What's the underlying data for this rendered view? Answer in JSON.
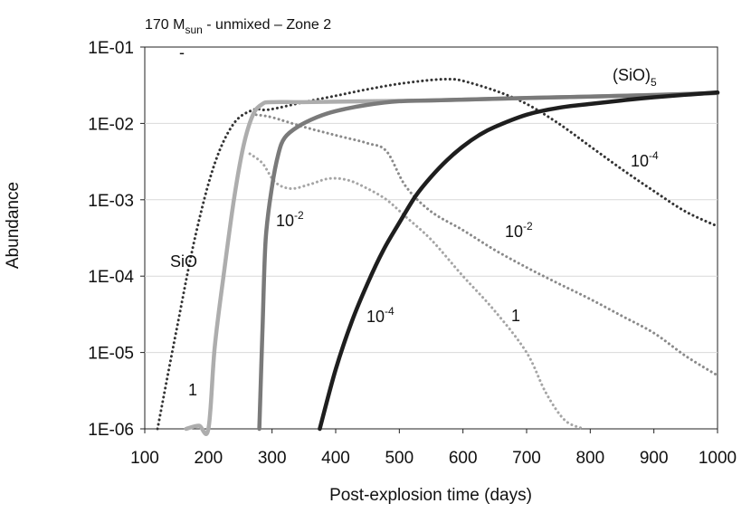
{
  "chart_data": {
    "type": "line",
    "title": "170 M",
    "title_sub": "sun",
    "title_rest": " - unmixed – Zone 2",
    "xlabel": "Post-explosion time (days)",
    "ylabel": "Abundance",
    "xlim": [
      100,
      1000
    ],
    "ylim_log10": [
      -6,
      -1
    ],
    "x_ticks": [
      100,
      200,
      300,
      400,
      500,
      600,
      700,
      800,
      900,
      1000
    ],
    "x_tick_labels": [
      "100",
      "200",
      "300",
      "400",
      "500",
      "600",
      "700",
      "800",
      "900",
      "1000"
    ],
    "y_ticks_log10": [
      -1,
      -2,
      -3,
      -4,
      -5,
      -6
    ],
    "y_tick_labels": [
      "1E-01",
      "1E-02",
      "1E-03",
      "1E-04",
      "1E-05",
      "1E-06"
    ],
    "grid": true,
    "series": [
      {
        "name": "SiO",
        "style": "dotted",
        "color": "#333333",
        "x": [
          120,
          150,
          180,
          210,
          240,
          270,
          290,
          310,
          350,
          400,
          450,
          500,
          550,
          580,
          600,
          650,
          700,
          750,
          800,
          850,
          900,
          950,
          1000
        ],
        "y": [
          1e-06,
          2e-05,
          0.00035,
          0.003,
          0.01,
          0.015,
          0.015,
          0.016,
          0.019,
          0.023,
          0.028,
          0.033,
          0.037,
          0.038,
          0.036,
          0.027,
          0.018,
          0.01,
          0.005,
          0.0025,
          0.0013,
          0.0007,
          0.00045
        ]
      },
      {
        "name": "SiO 10^-2",
        "style": "dotted",
        "color": "#8a8a8a",
        "x": [
          275,
          300,
          350,
          400,
          450,
          480,
          510,
          550,
          600,
          650,
          700,
          750,
          800,
          850,
          900,
          950,
          1000
        ],
        "y": [
          0.013,
          0.012,
          0.009,
          0.007,
          0.0055,
          0.0043,
          0.0015,
          0.0007,
          0.0004,
          0.00022,
          0.00013,
          8e-05,
          5e-05,
          3e-05,
          1.8e-05,
          9e-06,
          5e-06
        ]
      },
      {
        "name": "SiO 1",
        "style": "dotted",
        "color": "#a5a5a5",
        "x": [
          265,
          285,
          305,
          330,
          360,
          390,
          420,
          450,
          480,
          510,
          550,
          600,
          650,
          700,
          730,
          760,
          790
        ],
        "y": [
          0.004,
          0.003,
          0.0017,
          0.0014,
          0.0016,
          0.0019,
          0.0018,
          0.0014,
          0.001,
          0.0006,
          0.0003,
          0.0001,
          3.5e-05,
          1e-05,
          3e-06,
          1.3e-06,
          8e-07
        ]
      },
      {
        "name": "(SiO)5 1",
        "style": "solid",
        "color": "#adadad",
        "x": [
          165,
          185,
          200,
          210,
          225,
          240,
          255,
          270,
          285,
          300,
          350,
          450,
          550,
          650,
          750,
          850,
          1000
        ],
        "y": [
          1e-06,
          1.1e-06,
          1e-06,
          1.2e-05,
          0.00012,
          0.001,
          0.005,
          0.013,
          0.018,
          0.019,
          0.019,
          0.0195,
          0.02,
          0.021,
          0.022,
          0.023,
          0.025
        ]
      },
      {
        "name": "(SiO)5 10^-2",
        "style": "solid",
        "color": "#7a7a7a",
        "x": [
          280,
          285,
          290,
          300,
          310,
          320,
          340,
          370,
          400,
          450,
          500,
          550,
          600,
          700,
          800,
          900,
          1000
        ],
        "y": [
          1e-06,
          2e-05,
          0.0003,
          0.0015,
          0.004,
          0.0065,
          0.009,
          0.012,
          0.0145,
          0.0175,
          0.0195,
          0.02,
          0.0205,
          0.0215,
          0.0225,
          0.0235,
          0.025
        ]
      },
      {
        "name": "(SiO)5 10^-4",
        "style": "solid",
        "color": "#1e1e1e",
        "x": [
          375,
          400,
          425,
          450,
          475,
          500,
          525,
          550,
          575,
          600,
          625,
          650,
          700,
          750,
          800,
          850,
          900,
          1000
        ],
        "y": [
          1e-06,
          6e-06,
          2.5e-05,
          8e-05,
          0.00022,
          0.0005,
          0.0011,
          0.002,
          0.0033,
          0.005,
          0.007,
          0.009,
          0.013,
          0.016,
          0.018,
          0.02,
          0.022,
          0.0255
        ]
      }
    ],
    "annotations": [
      {
        "id": "sio",
        "base": "SiO",
        "exp": ""
      },
      {
        "id": "sio5",
        "base": "(SiO)",
        "sub": "5"
      },
      {
        "id": "sio-1e4",
        "base": "10",
        "exp": "-4"
      },
      {
        "id": "sio-1e2",
        "base": "10",
        "exp": "-2"
      },
      {
        "id": "sio-1",
        "base": "1"
      },
      {
        "id": "solid-1e2",
        "base": "10",
        "exp": "-2"
      },
      {
        "id": "solid-1e4",
        "base": "10",
        "exp": "-4"
      },
      {
        "id": "solid-1",
        "base": "1"
      },
      {
        "id": "dash",
        "base": "-"
      }
    ]
  }
}
